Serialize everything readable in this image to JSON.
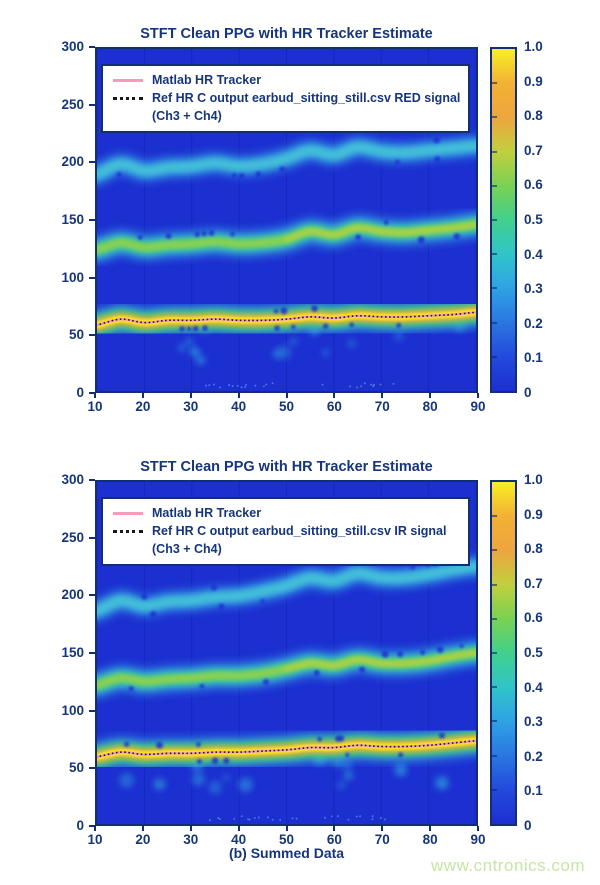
{
  "page": {
    "caption": "(b) Summed Data",
    "watermark": "www.cntronics.com"
  },
  "colors": {
    "text_navy": "#16357d",
    "axis_border": "#12306f",
    "plot_background": "#1c2fd0",
    "tracker_pink": "#f79ab8",
    "ref_dotted_black": "#1a1a1a",
    "watermark_green": "#c6e4a4",
    "band_cyan": "#38b5e8",
    "band_teal": "#3ecf92",
    "band_green": "#4ad066",
    "band_yellowgreen": "#93d148",
    "band_orange": "#f0a93b",
    "band_yellow": "#f8e826",
    "colorbar_gradient_top_to_bottom": [
      "#f9ef25",
      "#f2b135",
      "#eda53e",
      "#c2cf3e",
      "#7ad153",
      "#41d08c",
      "#30c5c8",
      "#2fa2e5",
      "#2b76e1",
      "#2349dd",
      "#1d2fd2"
    ]
  },
  "axes": {
    "y_tick_labels": [
      "300",
      "250",
      "200",
      "150",
      "100",
      "50",
      "0"
    ],
    "x_tick_labels": [
      "10",
      "20",
      "30",
      "40",
      "50",
      "60",
      "70",
      "80",
      "90"
    ],
    "colorbar_labels": [
      "1.0",
      "0.9",
      "0.8",
      "0.7",
      "0.6",
      "0.5",
      "0.4",
      "0.3",
      "0.2",
      "0.1",
      "0"
    ]
  },
  "figures": [
    {
      "title": "STFT Clean PPG with HR Tracker Estimate",
      "legend": {
        "line1": "Matlab HR Tracker",
        "line2": "Ref HR C output earbud_sitting_still.csv RED signal",
        "line3": "(Ch3 + Ch4)"
      }
    },
    {
      "title": "STFT Clean PPG with HR Tracker Estimate",
      "legend": {
        "line1": "Matlab HR Tracker",
        "line2": "Ref HR C output earbud_sitting_still.csv IR signal",
        "line3": "(Ch3 + Ch4)"
      }
    }
  ],
  "chart_data": [
    {
      "type": "heatmap",
      "title": "STFT Clean PPG with HR Tracker Estimate",
      "xlabel": "",
      "ylabel": "",
      "x_range": [
        10,
        90
      ],
      "y_range": [
        0,
        300
      ],
      "colorbar_range": [
        0,
        1
      ],
      "grid": false,
      "legend_position": "top-left",
      "x": [
        10,
        15,
        20,
        25,
        30,
        35,
        40,
        45,
        50,
        55,
        60,
        65,
        70,
        75,
        80,
        85,
        90
      ],
      "series": [
        {
          "name": "matlab_hr_tracker",
          "values": [
            58,
            63,
            60,
            62,
            62,
            63,
            62,
            62,
            63,
            65,
            64,
            66,
            65,
            65,
            66,
            67,
            69
          ]
        },
        {
          "name": "ref_hr_dotted",
          "values": [
            58,
            63,
            60,
            62,
            62,
            63,
            62,
            62,
            63,
            65,
            64,
            66,
            65,
            65,
            66,
            67,
            69
          ]
        },
        {
          "name": "harmonic2_band_center",
          "values": [
            124,
            130,
            126,
            128,
            129,
            131,
            129,
            130,
            133,
            140,
            137,
            143,
            140,
            139,
            141,
            143,
            146
          ]
        },
        {
          "name": "harmonic3_band_center",
          "values": [
            190,
            199,
            193,
            196,
            197,
            200,
            197,
            199,
            204,
            211,
            207,
            214,
            210,
            209,
            211,
            213,
            215
          ]
        }
      ]
    },
    {
      "type": "heatmap",
      "title": "STFT Clean PPG with HR Tracker Estimate",
      "xlabel": "",
      "ylabel": "",
      "x_range": [
        10,
        90
      ],
      "y_range": [
        0,
        300
      ],
      "colorbar_range": [
        0,
        1
      ],
      "grid": false,
      "legend_position": "top-left",
      "x": [
        10,
        15,
        20,
        25,
        30,
        35,
        40,
        45,
        50,
        55,
        60,
        65,
        70,
        75,
        80,
        85,
        90
      ],
      "series": [
        {
          "name": "matlab_hr_tracker",
          "values": [
            59,
            63,
            61,
            62,
            62,
            63,
            63,
            64,
            65,
            67,
            67,
            69,
            68,
            68,
            69,
            71,
            73
          ]
        },
        {
          "name": "ref_hr_dotted",
          "values": [
            59,
            63,
            61,
            62,
            62,
            63,
            63,
            64,
            65,
            67,
            67,
            69,
            68,
            68,
            69,
            71,
            73
          ]
        },
        {
          "name": "harmonic2_band_center",
          "values": [
            122,
            128,
            125,
            127,
            128,
            130,
            130,
            132,
            136,
            141,
            139,
            144,
            141,
            141,
            143,
            147,
            150
          ]
        },
        {
          "name": "harmonic3_band_center",
          "values": [
            187,
            196,
            191,
            195,
            196,
            199,
            200,
            204,
            209,
            216,
            213,
            220,
            216,
            216,
            219,
            223,
            226
          ]
        }
      ]
    }
  ]
}
